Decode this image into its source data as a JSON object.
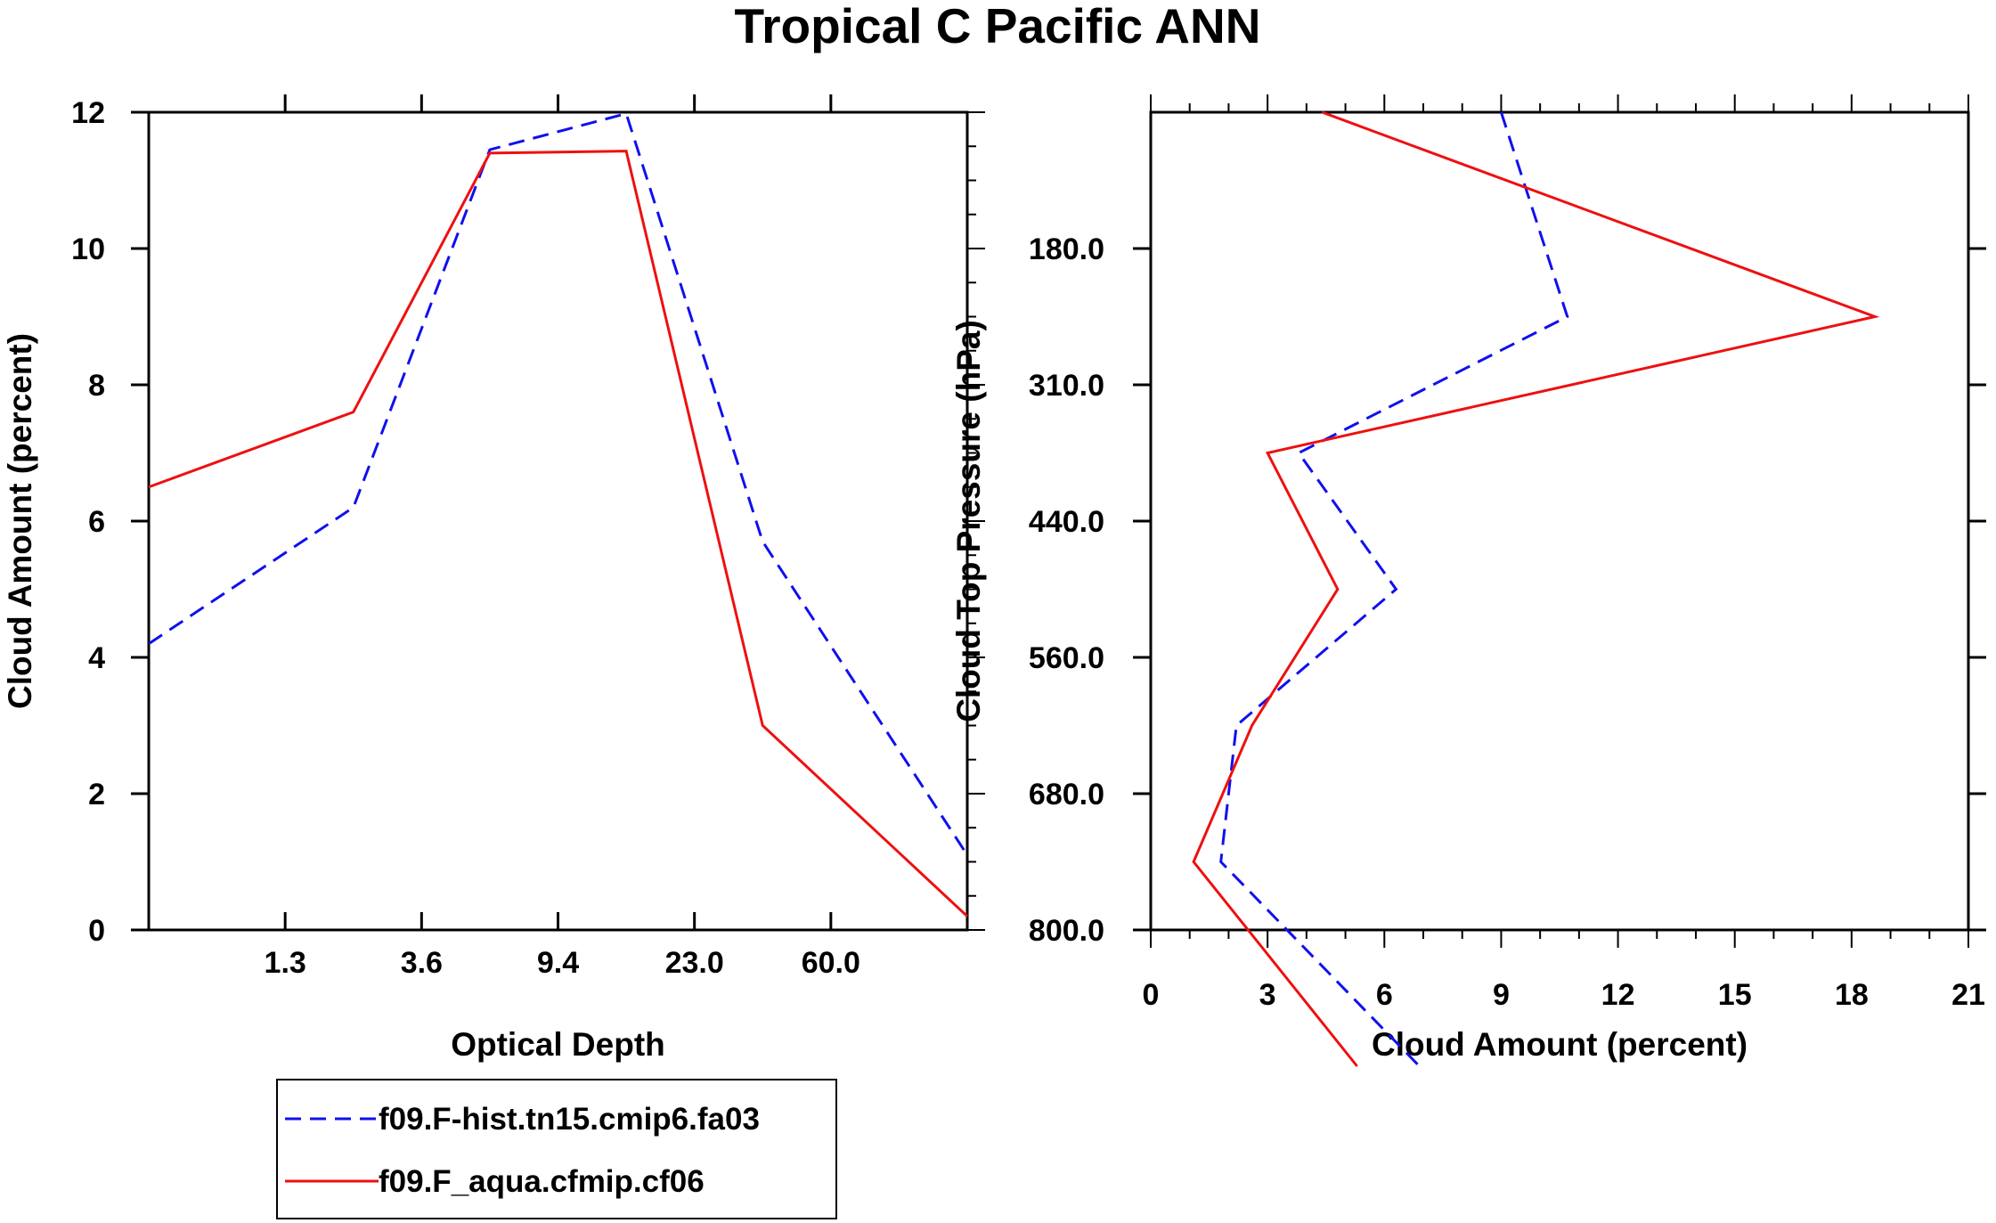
{
  "title": "Tropical C Pacific ANN",
  "colors": {
    "series_a": "#1010ee",
    "series_b": "#ee1010",
    "axes": "#000000"
  },
  "chart_data": [
    {
      "type": "line",
      "xlabel": "Optical Depth",
      "ylabel": "Cloud Amount (percent)",
      "x_tick_labels": [
        "1.3",
        "3.6",
        "9.4",
        "23.0",
        "60.0"
      ],
      "y_ticks": [
        0,
        2,
        4,
        6,
        8,
        10,
        12
      ],
      "ylim": [
        0,
        12
      ],
      "bins": 7,
      "series": [
        {
          "name": "f09.F-hist.tn15.cmip6.fa03",
          "style": "dashed",
          "values": [
            4.2,
            6.2,
            11.45,
            11.98,
            5.7,
            1.1
          ]
        },
        {
          "name": "f09.F_aqua.cfmip.cf06",
          "style": "solid",
          "values": [
            6.5,
            7.6,
            11.4,
            11.43,
            3.0,
            0.2
          ]
        }
      ]
    },
    {
      "type": "line",
      "xlabel": "Cloud Amount (percent)",
      "ylabel": "Cloud Top Pressure (hPa)",
      "x_ticks": [
        0,
        3,
        6,
        9,
        12,
        15,
        18,
        21
      ],
      "xlim": [
        0,
        21
      ],
      "y_tick_labels": [
        "180.0",
        "310.0",
        "440.0",
        "560.0",
        "680.0",
        "800.0"
      ],
      "levels": 7,
      "series": [
        {
          "name": "f09.F-hist.tn15.cmip6.fa03",
          "style": "dashed",
          "values": [
            9.0,
            10.7,
            3.8,
            6.3,
            2.2,
            1.8,
            6.9
          ]
        },
        {
          "name": "f09.F_aqua.cfmip.cf06",
          "style": "solid",
          "values": [
            4.4,
            18.6,
            3.0,
            4.8,
            2.6,
            1.1,
            5.3
          ]
        }
      ]
    }
  ]
}
